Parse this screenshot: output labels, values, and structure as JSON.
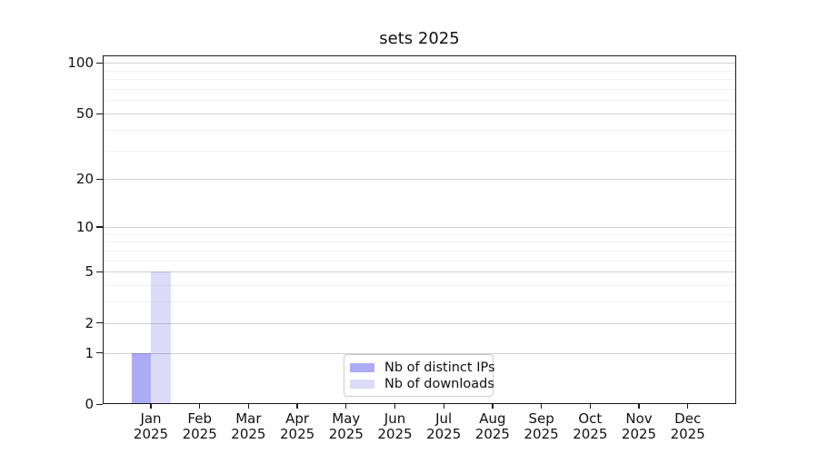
{
  "chart_data": {
    "type": "bar",
    "title": "sets 2025",
    "categories": [
      "Jan 2025",
      "Feb 2025",
      "Mar 2025",
      "Apr 2025",
      "May 2025",
      "Jun 2025",
      "Jul 2025",
      "Aug 2025",
      "Sep 2025",
      "Oct 2025",
      "Nov 2025",
      "Dec 2025"
    ],
    "series": [
      {
        "name": "Nb of distinct IPs",
        "color": "#abacf5",
        "values": [
          1,
          0,
          0,
          0,
          0,
          0,
          0,
          0,
          0,
          0,
          0,
          0
        ]
      },
      {
        "name": "Nb of downloads",
        "color": "#dcdcf8",
        "values": [
          5,
          0,
          0,
          0,
          0,
          0,
          0,
          0,
          0,
          0,
          0,
          0
        ]
      }
    ],
    "yscale": "log1p",
    "ylim": [
      0,
      111
    ],
    "y_tick_labels": [
      0,
      1,
      2,
      5,
      10,
      20,
      50,
      100
    ],
    "y_minor_gridlines": [
      3,
      4,
      6,
      7,
      8,
      9,
      30,
      40,
      60,
      70,
      80,
      90
    ],
    "xlabel": "",
    "ylabel": "",
    "grid": true,
    "legend_position": "lower center",
    "colors": {
      "major_grid": "#d0d0d0",
      "minor_grid": "#f0f0f0",
      "axis": "#1a1a1a",
      "text": "#111111",
      "background": "#ffffff"
    }
  }
}
